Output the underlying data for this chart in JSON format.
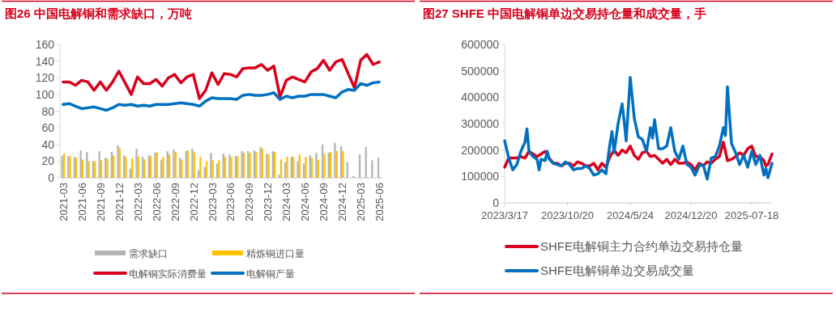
{
  "chart_data": [
    {
      "type": "bar",
      "title": "图26  中国电解铜和需求缺口，万吨",
      "categories": [
        "2021-03",
        null,
        null,
        "2021-06",
        null,
        null,
        "2021-09",
        null,
        null,
        "2021-12",
        null,
        null,
        "2022-03",
        null,
        null,
        "2022-06",
        null,
        null,
        "2022-09",
        null,
        null,
        "2022-12",
        null,
        null,
        "2023-03",
        null,
        null,
        "2023-06",
        null,
        null,
        "2023-09",
        null,
        null,
        "2023-12",
        null,
        null,
        "2024-03",
        null,
        null,
        "2024-06",
        null,
        null,
        "2024-09",
        null,
        null,
        "2024-12",
        null,
        null,
        "2025-03",
        null,
        null,
        "2025-06"
      ],
      "series": [
        {
          "name": "需求缺口",
          "color": "#b4b4b4",
          "values": [
            26,
            26,
            25,
            33,
            31,
            20,
            32,
            24,
            31,
            39,
            27,
            11,
            35,
            25,
            27,
            30,
            21,
            32,
            34,
            24,
            32,
            35,
            9,
            13,
            30,
            17,
            29,
            28,
            26,
            32,
            32,
            33,
            37,
            29,
            32,
            4,
            19,
            25,
            20,
            17,
            27,
            30,
            40,
            30,
            42,
            38,
            19,
            2,
            28,
            37,
            21,
            24
          ]
        },
        {
          "name": "精炼铜进口量",
          "color": "#ffc000",
          "values": [
            29,
            26,
            24,
            22,
            20,
            20,
            21,
            23,
            27,
            36,
            25,
            23,
            26,
            22,
            26,
            31,
            25,
            28,
            31,
            22,
            33,
            31,
            25,
            20,
            21,
            21,
            25,
            25,
            26,
            30,
            30,
            31,
            35,
            28,
            31,
            22,
            25,
            25,
            28,
            25,
            24,
            22,
            29,
            31,
            32,
            32,
            null,
            null,
            null,
            null,
            null,
            null
          ]
        },
        {
          "name": "电解铜实际消费量",
          "type": "line",
          "color": "#d9001b",
          "values": [
            115,
            115,
            111,
            117,
            115,
            105,
            115,
            105,
            115,
            128,
            114,
            100,
            121,
            113,
            113,
            118,
            110,
            120,
            124,
            114,
            121,
            124,
            95,
            105,
            126,
            112,
            125,
            124,
            121,
            131,
            132,
            132,
            136,
            129,
            134,
            97,
            117,
            121,
            118,
            115,
            127,
            131,
            141,
            129,
            139,
            142,
            125,
            108,
            141,
            148,
            136,
            139
          ]
        },
        {
          "name": "电解铜产量",
          "type": "line",
          "color": "#0070c0",
          "values": [
            88,
            89,
            86,
            83,
            84,
            85,
            83,
            81,
            84,
            88,
            87,
            88,
            86,
            87,
            86,
            88,
            88,
            88,
            89,
            90,
            89,
            88,
            86,
            92,
            96,
            95,
            95,
            95,
            94,
            99,
            100,
            99,
            99,
            100,
            102,
            94,
            98,
            96,
            98,
            98,
            100,
            100,
            100,
            98,
            96,
            103,
            106,
            105,
            113,
            111,
            114,
            115
          ]
        }
      ],
      "ylim": [
        0,
        160
      ],
      "yticks": [
        0,
        20,
        40,
        60,
        80,
        100,
        120,
        140,
        160
      ],
      "legend": "bottom"
    },
    {
      "type": "line",
      "title": "图27  SHFE 中国电解铜单边交易持仓量和成交量，手",
      "x": [
        "2023-03-17",
        "2023-03-31",
        "2023-04-14",
        "2023-04-28",
        "2023-05-12",
        "2023-05-26",
        "2023-06-09",
        "2023-06-23",
        "2023-07-07",
        "2023-07-21",
        "2023-08-04",
        "2023-08-18",
        "2023-09-01",
        "2023-09-15",
        "2023-09-29",
        "2023-10-13",
        "2023-10-27",
        "2023-11-10",
        "2023-11-24",
        "2023-12-08",
        "2023-12-22",
        "2024-01-05",
        "2024-01-19",
        "2024-02-02",
        "2024-02-16",
        "2024-03-01",
        "2024-03-15",
        "2024-03-29",
        "2024-04-12",
        "2024-04-26",
        "2024-05-10",
        "2024-05-24",
        "2024-06-07",
        "2024-06-21",
        "2024-07-05",
        "2024-07-19",
        "2024-08-02",
        "2024-08-16",
        "2024-08-30",
        "2024-09-13",
        "2024-09-27",
        "2024-10-11",
        "2024-10-25",
        "2024-11-08",
        "2024-11-22",
        "2024-12-06",
        "2024-12-20",
        "2025-01-03",
        "2025-01-17",
        "2025-01-31",
        "2025-02-14",
        "2025-02-28",
        "2025-03-14",
        "2025-03-28",
        "2025-04-11",
        "2025-04-25",
        "2025-05-09",
        "2025-05-23",
        "2025-06-06",
        "2025-06-20",
        "2025-07-04",
        "2025-07-18",
        "2025-08-01",
        "2025-08-15",
        "2025-08-29",
        "2025-09-05",
        "2025-09-12",
        "2025-09-26"
      ],
      "series": [
        {
          "name": "SHFE电解铜主力合约单边交易持仓量",
          "color": "#d9001b",
          "values": [
            135000,
            170000,
            170000,
            170000,
            175000,
            170000,
            195000,
            185000,
            175000,
            185000,
            195000,
            170000,
            150000,
            150000,
            140000,
            150000,
            150000,
            140000,
            155000,
            150000,
            140000,
            140000,
            150000,
            125000,
            150000,
            135000,
            175000,
            200000,
            180000,
            200000,
            190000,
            215000,
            180000,
            165000,
            190000,
            195000,
            175000,
            180000,
            165000,
            150000,
            165000,
            145000,
            165000,
            150000,
            150000,
            155000,
            145000,
            125000,
            150000,
            140000,
            155000,
            150000,
            165000,
            175000,
            230000,
            160000,
            165000,
            175000,
            190000,
            180000,
            205000,
            215000,
            175000,
            175000,
            160000,
            140000,
            145000,
            185000
          ]
        },
        {
          "name": "SHFE电解铜单边交易成交量",
          "color": "#0070c0",
          "x": [
            "2023-03-17",
            "2023-03-31",
            "2023-04-14",
            "2023-04-28",
            "2023-05-12",
            "2023-05-26",
            "2023-06-02",
            "2023-06-09",
            "2023-06-23",
            "2023-07-07",
            "2023-07-14",
            "2023-07-21",
            "2023-08-04",
            "2023-08-11",
            "2023-08-18",
            "2023-09-01",
            "2023-09-15",
            "2023-09-29",
            "2023-10-13",
            "2023-10-27",
            "2023-11-10",
            "2023-11-24",
            "2023-12-08",
            "2023-12-22",
            "2024-01-05",
            "2024-01-19",
            "2024-02-02",
            "2024-02-16",
            "2024-03-01",
            "2024-03-15",
            "2024-03-22",
            "2024-03-29",
            "2024-04-12",
            "2024-04-26",
            "2024-05-03",
            "2024-05-10",
            "2024-05-24",
            "2024-06-07",
            "2024-06-21",
            "2024-07-05",
            "2024-07-19",
            "2024-08-02",
            "2024-08-09",
            "2024-08-16",
            "2024-08-30",
            "2024-09-13",
            "2024-09-27",
            "2024-10-11",
            "2024-10-25",
            "2024-11-08",
            "2024-11-22",
            "2024-12-06",
            "2024-12-20",
            "2025-01-03",
            "2025-01-17",
            "2025-01-31",
            "2025-02-14",
            "2025-02-28",
            "2025-03-14",
            "2025-03-28",
            "2025-04-11",
            "2025-04-18",
            "2025-04-25",
            "2025-05-09",
            "2025-05-23",
            "2025-06-06",
            "2025-06-20",
            "2025-07-04",
            "2025-07-18",
            "2025-08-01",
            "2025-08-15",
            "2025-08-29",
            "2025-09-05",
            "2025-09-12",
            "2025-09-26"
          ],
          "values": [
            235000,
            170000,
            125000,
            145000,
            195000,
            230000,
            280000,
            195000,
            175000,
            165000,
            125000,
            165000,
            160000,
            195000,
            165000,
            150000,
            145000,
            140000,
            155000,
            145000,
            125000,
            130000,
            130000,
            140000,
            130000,
            105000,
            110000,
            125000,
            110000,
            225000,
            270000,
            190000,
            300000,
            375000,
            310000,
            235000,
            475000,
            320000,
            250000,
            240000,
            195000,
            285000,
            245000,
            315000,
            205000,
            205000,
            215000,
            285000,
            195000,
            165000,
            215000,
            145000,
            135000,
            105000,
            140000,
            145000,
            90000,
            170000,
            175000,
            215000,
            285000,
            255000,
            440000,
            225000,
            190000,
            145000,
            180000,
            135000,
            195000,
            145000,
            180000,
            105000,
            130000,
            95000,
            150000
          ]
        }
      ],
      "xlim": [
        "2023-03-17",
        "2025-09-26"
      ],
      "xticks": [
        {
          "value": "2023-03-17",
          "label": "2023/3/17"
        },
        {
          "value": "2023-10-20",
          "label": "2023/10/20"
        },
        {
          "value": "2024-05-24",
          "label": "2024/5/24"
        },
        {
          "value": "2024-12-20",
          "label": "2024/12/20"
        },
        {
          "value": "2025-07-18",
          "label": "2025-07-18"
        }
      ],
      "ylim": [
        0,
        600000
      ],
      "yticks": [
        0,
        100000,
        200000,
        300000,
        400000,
        500000,
        600000
      ],
      "legend": "bottom"
    }
  ]
}
